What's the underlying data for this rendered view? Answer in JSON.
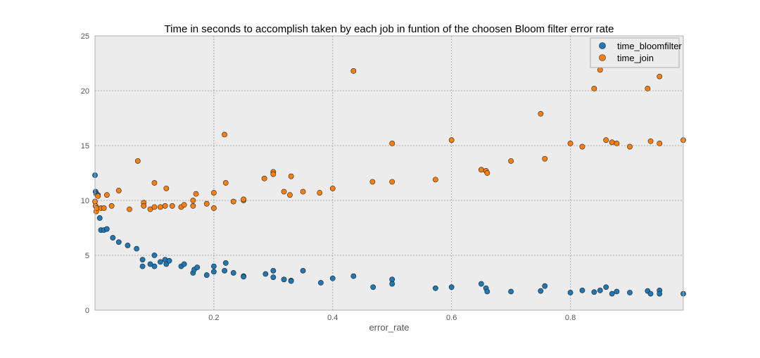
{
  "chart_data": {
    "type": "scatter",
    "title": "Time in seconds to accomplish taken by each job in funtion of the choosen Bloom filter error rate",
    "xlabel": "error_rate",
    "ylabel": "",
    "xlim": [
      0,
      0.99
    ],
    "ylim": [
      0,
      25
    ],
    "x_ticks": [
      0.2,
      0.4,
      0.6,
      0.8
    ],
    "x_tick_labels": [
      "0.2",
      "0.4",
      "0.6",
      "0.8"
    ],
    "y_ticks": [
      0,
      5,
      10,
      15,
      20,
      25
    ],
    "y_tick_labels": [
      "0",
      "5",
      "10",
      "15",
      "20",
      "25"
    ],
    "grid": true,
    "legend_position": "top-right",
    "background": "#ececec",
    "series": [
      {
        "name": "time_bloomfilter",
        "color": "#1f77b4",
        "points": [
          [
            0.0,
            12.3
          ],
          [
            0.001,
            10.8
          ],
          [
            0.002,
            10.6
          ],
          [
            0.005,
            10.5
          ],
          [
            0.008,
            8.4
          ],
          [
            0.01,
            7.3
          ],
          [
            0.015,
            7.3
          ],
          [
            0.02,
            7.4
          ],
          [
            0.03,
            6.6
          ],
          [
            0.04,
            6.2
          ],
          [
            0.055,
            5.9
          ],
          [
            0.07,
            5.6
          ],
          [
            0.08,
            4.6
          ],
          [
            0.08,
            4.0
          ],
          [
            0.093,
            4.2
          ],
          [
            0.1,
            5.0
          ],
          [
            0.1,
            4.0
          ],
          [
            0.11,
            4.4
          ],
          [
            0.118,
            4.6
          ],
          [
            0.12,
            4.2
          ],
          [
            0.125,
            4.5
          ],
          [
            0.145,
            4.0
          ],
          [
            0.15,
            4.2
          ],
          [
            0.165,
            3.4
          ],
          [
            0.167,
            3.7
          ],
          [
            0.172,
            3.9
          ],
          [
            0.188,
            3.2
          ],
          [
            0.2,
            4.0
          ],
          [
            0.2,
            3.5
          ],
          [
            0.218,
            3.6
          ],
          [
            0.22,
            4.3
          ],
          [
            0.233,
            3.4
          ],
          [
            0.25,
            3.1
          ],
          [
            0.25,
            3.05
          ],
          [
            0.287,
            3.3
          ],
          [
            0.3,
            3.6
          ],
          [
            0.3,
            3.0
          ],
          [
            0.318,
            2.8
          ],
          [
            0.33,
            2.7
          ],
          [
            0.33,
            2.65
          ],
          [
            0.35,
            3.6
          ],
          [
            0.38,
            2.5
          ],
          [
            0.4,
            2.9
          ],
          [
            0.435,
            3.1
          ],
          [
            0.468,
            2.1
          ],
          [
            0.5,
            2.8
          ],
          [
            0.5,
            2.4
          ],
          [
            0.573,
            2.0
          ],
          [
            0.6,
            2.1
          ],
          [
            0.65,
            2.4
          ],
          [
            0.658,
            2.0
          ],
          [
            0.66,
            1.7
          ],
          [
            0.7,
            1.7
          ],
          [
            0.75,
            1.75
          ],
          [
            0.757,
            2.2
          ],
          [
            0.8,
            1.6
          ],
          [
            0.82,
            1.8
          ],
          [
            0.84,
            1.65
          ],
          [
            0.85,
            1.8
          ],
          [
            0.86,
            2.1
          ],
          [
            0.87,
            1.5
          ],
          [
            0.878,
            1.7
          ],
          [
            0.9,
            1.6
          ],
          [
            0.93,
            1.75
          ],
          [
            0.935,
            1.5
          ],
          [
            0.95,
            1.8
          ],
          [
            0.95,
            1.5
          ],
          [
            0.99,
            1.5
          ]
        ]
      },
      {
        "name": "time_join",
        "color": "#ff7f0e",
        "points": [
          [
            0.0,
            9.9
          ],
          [
            0.001,
            9.5
          ],
          [
            0.002,
            9.0
          ],
          [
            0.003,
            9.3
          ],
          [
            0.005,
            10.4
          ],
          [
            0.01,
            9.3
          ],
          [
            0.015,
            9.3
          ],
          [
            0.02,
            10.5
          ],
          [
            0.028,
            9.5
          ],
          [
            0.04,
            10.9
          ],
          [
            0.058,
            9.2
          ],
          [
            0.072,
            13.6
          ],
          [
            0.082,
            9.8
          ],
          [
            0.082,
            9.5
          ],
          [
            0.093,
            9.2
          ],
          [
            0.1,
            11.6
          ],
          [
            0.1,
            9.4
          ],
          [
            0.11,
            9.4
          ],
          [
            0.118,
            9.5
          ],
          [
            0.12,
            11.1
          ],
          [
            0.13,
            9.5
          ],
          [
            0.145,
            9.4
          ],
          [
            0.15,
            9.6
          ],
          [
            0.165,
            10.0
          ],
          [
            0.165,
            9.5
          ],
          [
            0.17,
            10.6
          ],
          [
            0.188,
            9.7
          ],
          [
            0.2,
            10.7
          ],
          [
            0.2,
            9.3
          ],
          [
            0.218,
            16.0
          ],
          [
            0.22,
            11.6
          ],
          [
            0.233,
            9.9
          ],
          [
            0.25,
            10.0
          ],
          [
            0.25,
            10.1
          ],
          [
            0.285,
            12.0
          ],
          [
            0.3,
            12.6
          ],
          [
            0.3,
            12.4
          ],
          [
            0.318,
            10.8
          ],
          [
            0.328,
            10.5
          ],
          [
            0.33,
            12.2
          ],
          [
            0.35,
            10.8
          ],
          [
            0.378,
            10.7
          ],
          [
            0.4,
            11.1
          ],
          [
            0.435,
            21.8
          ],
          [
            0.467,
            11.7
          ],
          [
            0.5,
            15.2
          ],
          [
            0.5,
            11.7
          ],
          [
            0.573,
            11.9
          ],
          [
            0.6,
            15.5
          ],
          [
            0.65,
            12.8
          ],
          [
            0.658,
            12.7
          ],
          [
            0.66,
            12.5
          ],
          [
            0.7,
            13.6
          ],
          [
            0.75,
            17.9
          ],
          [
            0.757,
            13.8
          ],
          [
            0.8,
            15.2
          ],
          [
            0.82,
            14.9
          ],
          [
            0.84,
            20.2
          ],
          [
            0.85,
            21.9
          ],
          [
            0.86,
            15.5
          ],
          [
            0.87,
            15.3
          ],
          [
            0.878,
            15.2
          ],
          [
            0.9,
            14.9
          ],
          [
            0.93,
            20.2
          ],
          [
            0.935,
            15.4
          ],
          [
            0.95,
            21.3
          ],
          [
            0.95,
            15.2
          ],
          [
            0.99,
            15.5
          ]
        ]
      }
    ]
  }
}
